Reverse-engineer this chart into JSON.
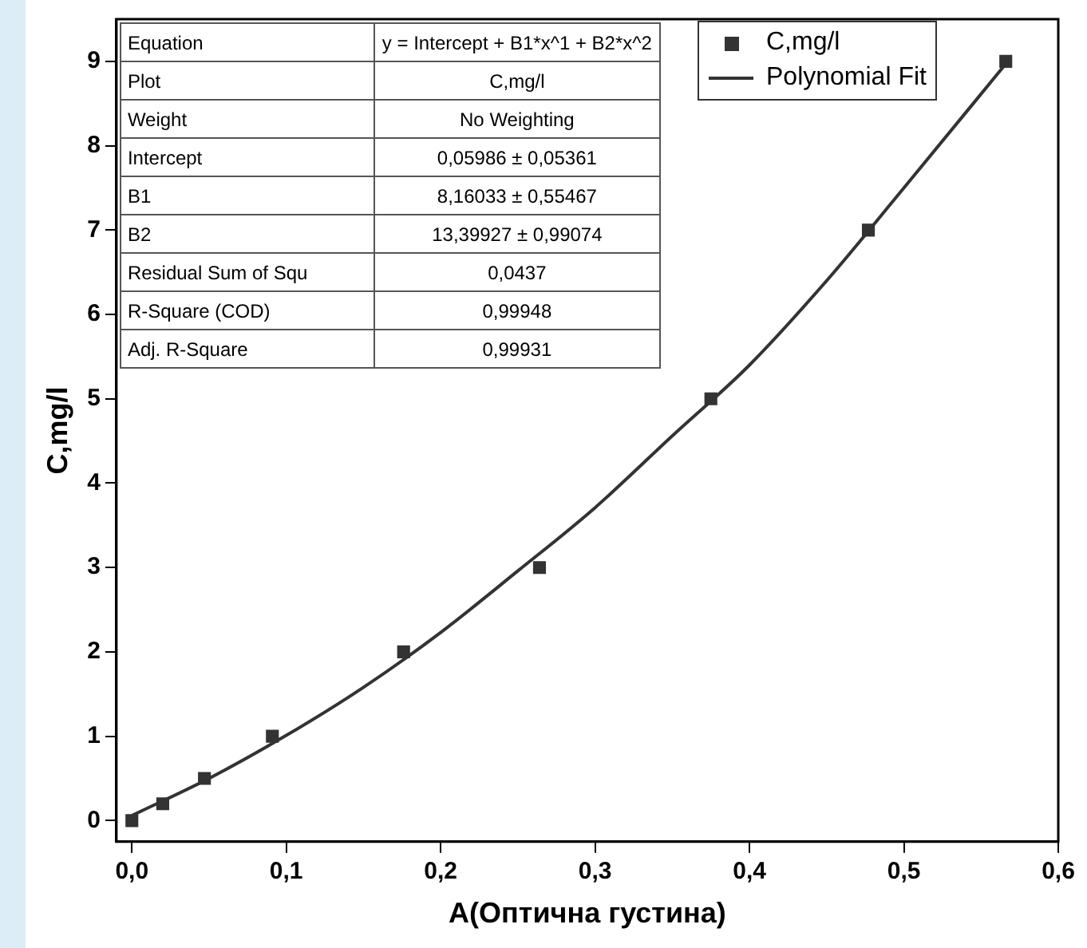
{
  "chart_data": {
    "type": "scatter",
    "xlabel": "A(Оптична густина)",
    "ylabel": "C,mg/l",
    "xlim": [
      -0.01,
      0.6
    ],
    "ylim": [
      -0.25,
      9.5
    ],
    "xticks": [
      {
        "value": 0,
        "label": "0,0"
      },
      {
        "value": 0.1,
        "label": "0,1"
      },
      {
        "value": 0.2,
        "label": "0,2"
      },
      {
        "value": 0.3,
        "label": "0,3"
      },
      {
        "value": 0.4,
        "label": "0,4"
      },
      {
        "value": 0.5,
        "label": "0,5"
      },
      {
        "value": 0.6,
        "label": "0,6"
      }
    ],
    "yticks": [
      0,
      1,
      2,
      3,
      4,
      5,
      6,
      7,
      8,
      9
    ],
    "legend": "top right",
    "grid": false,
    "series": [
      {
        "name": "C,mg/l",
        "type": "scatter",
        "marker": "square",
        "color": "#333333",
        "x": [
          0,
          0.02,
          0.047,
          0.091,
          0.176,
          0.264,
          0.375,
          0.477,
          0.566
        ],
        "values": [
          0,
          0.2,
          0.5,
          1,
          2,
          3,
          5,
          7,
          9
        ]
      },
      {
        "name": "Polynomial Fit",
        "type": "line",
        "marker": "none",
        "color": "#333333",
        "x": [
          0,
          0.05,
          0.1,
          0.15,
          0.2,
          0.25,
          0.3,
          0.35,
          0.4,
          0.45,
          0.5,
          0.566
        ],
        "values": [
          0.06,
          0.5,
          1.01,
          1.58,
          2.23,
          2.96,
          3.71,
          4.56,
          5.4,
          6.4,
          7.5,
          8.97
        ]
      }
    ],
    "annotations": [
      "Equation",
      "y = Intercept + B1*x^1 + B2*x^2",
      "Plot",
      "C,mg/l",
      "Weight",
      "No Weighting",
      "Intercept",
      "0,05986 ± 0,05361",
      "B1",
      "8,16033 ± 0,55467",
      "B2",
      "13,39927 ± 0,99074",
      "Residual Sum of Squ",
      "0,0437",
      "R-Square (COD)",
      "0,99948",
      "Adj. R-Square",
      "0,99931"
    ]
  }
}
